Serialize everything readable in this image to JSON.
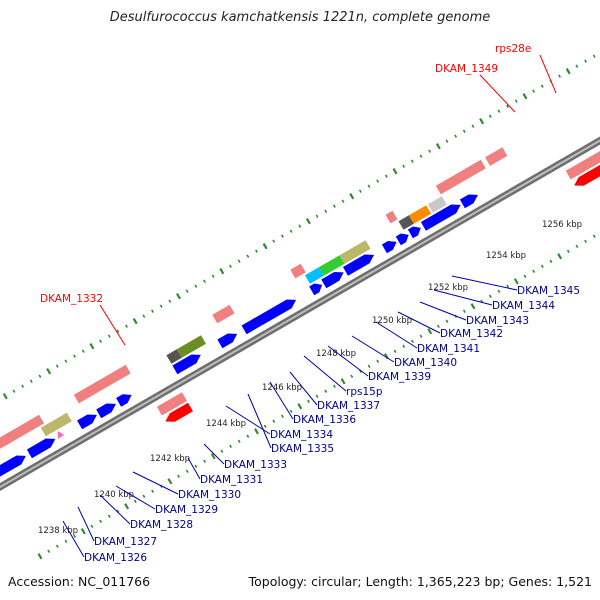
{
  "title": "Desulfurococcus kamchatkensis 1221n, complete genome",
  "footer": {
    "accession": "Accession: NC_011766",
    "summary": "Topology: circular; Length: 1,365,223 bp; Genes: 1,521"
  },
  "colors": {
    "backbone": "#8a8a8a",
    "forward_cds": "#0000ff",
    "reverse_cds": "#ff0000",
    "rna_or_pseudo": "#f08080",
    "tick": "#2e8b2e",
    "label_blue": "#00008b",
    "label_red": "#ff0000"
  },
  "scale_labels": [
    "1238 kbp",
    "1240 kbp",
    "1242 kbp",
    "1244 kbp",
    "1246 kbp",
    "1248 kbp",
    "1250 kbp",
    "1252 kbp",
    "1254 kbp",
    "1256 kbp"
  ],
  "gene_labels": [
    "DKAM_1326",
    "DKAM_1327",
    "DKAM_1328",
    "DKAM_1329",
    "DKAM_1330",
    "DKAM_1331",
    "DKAM_1333",
    "DKAM_1334",
    "DKAM_1335",
    "DKAM_1336",
    "DKAM_1337",
    "rps15p",
    "DKAM_1339",
    "DKAM_1340",
    "DKAM_1341",
    "DKAM_1342",
    "DKAM_1343",
    "DKAM_1344",
    "DKAM_1345"
  ],
  "red_labels": [
    "DKAM_1332",
    "DKAM_1349",
    "rps28e"
  ]
}
